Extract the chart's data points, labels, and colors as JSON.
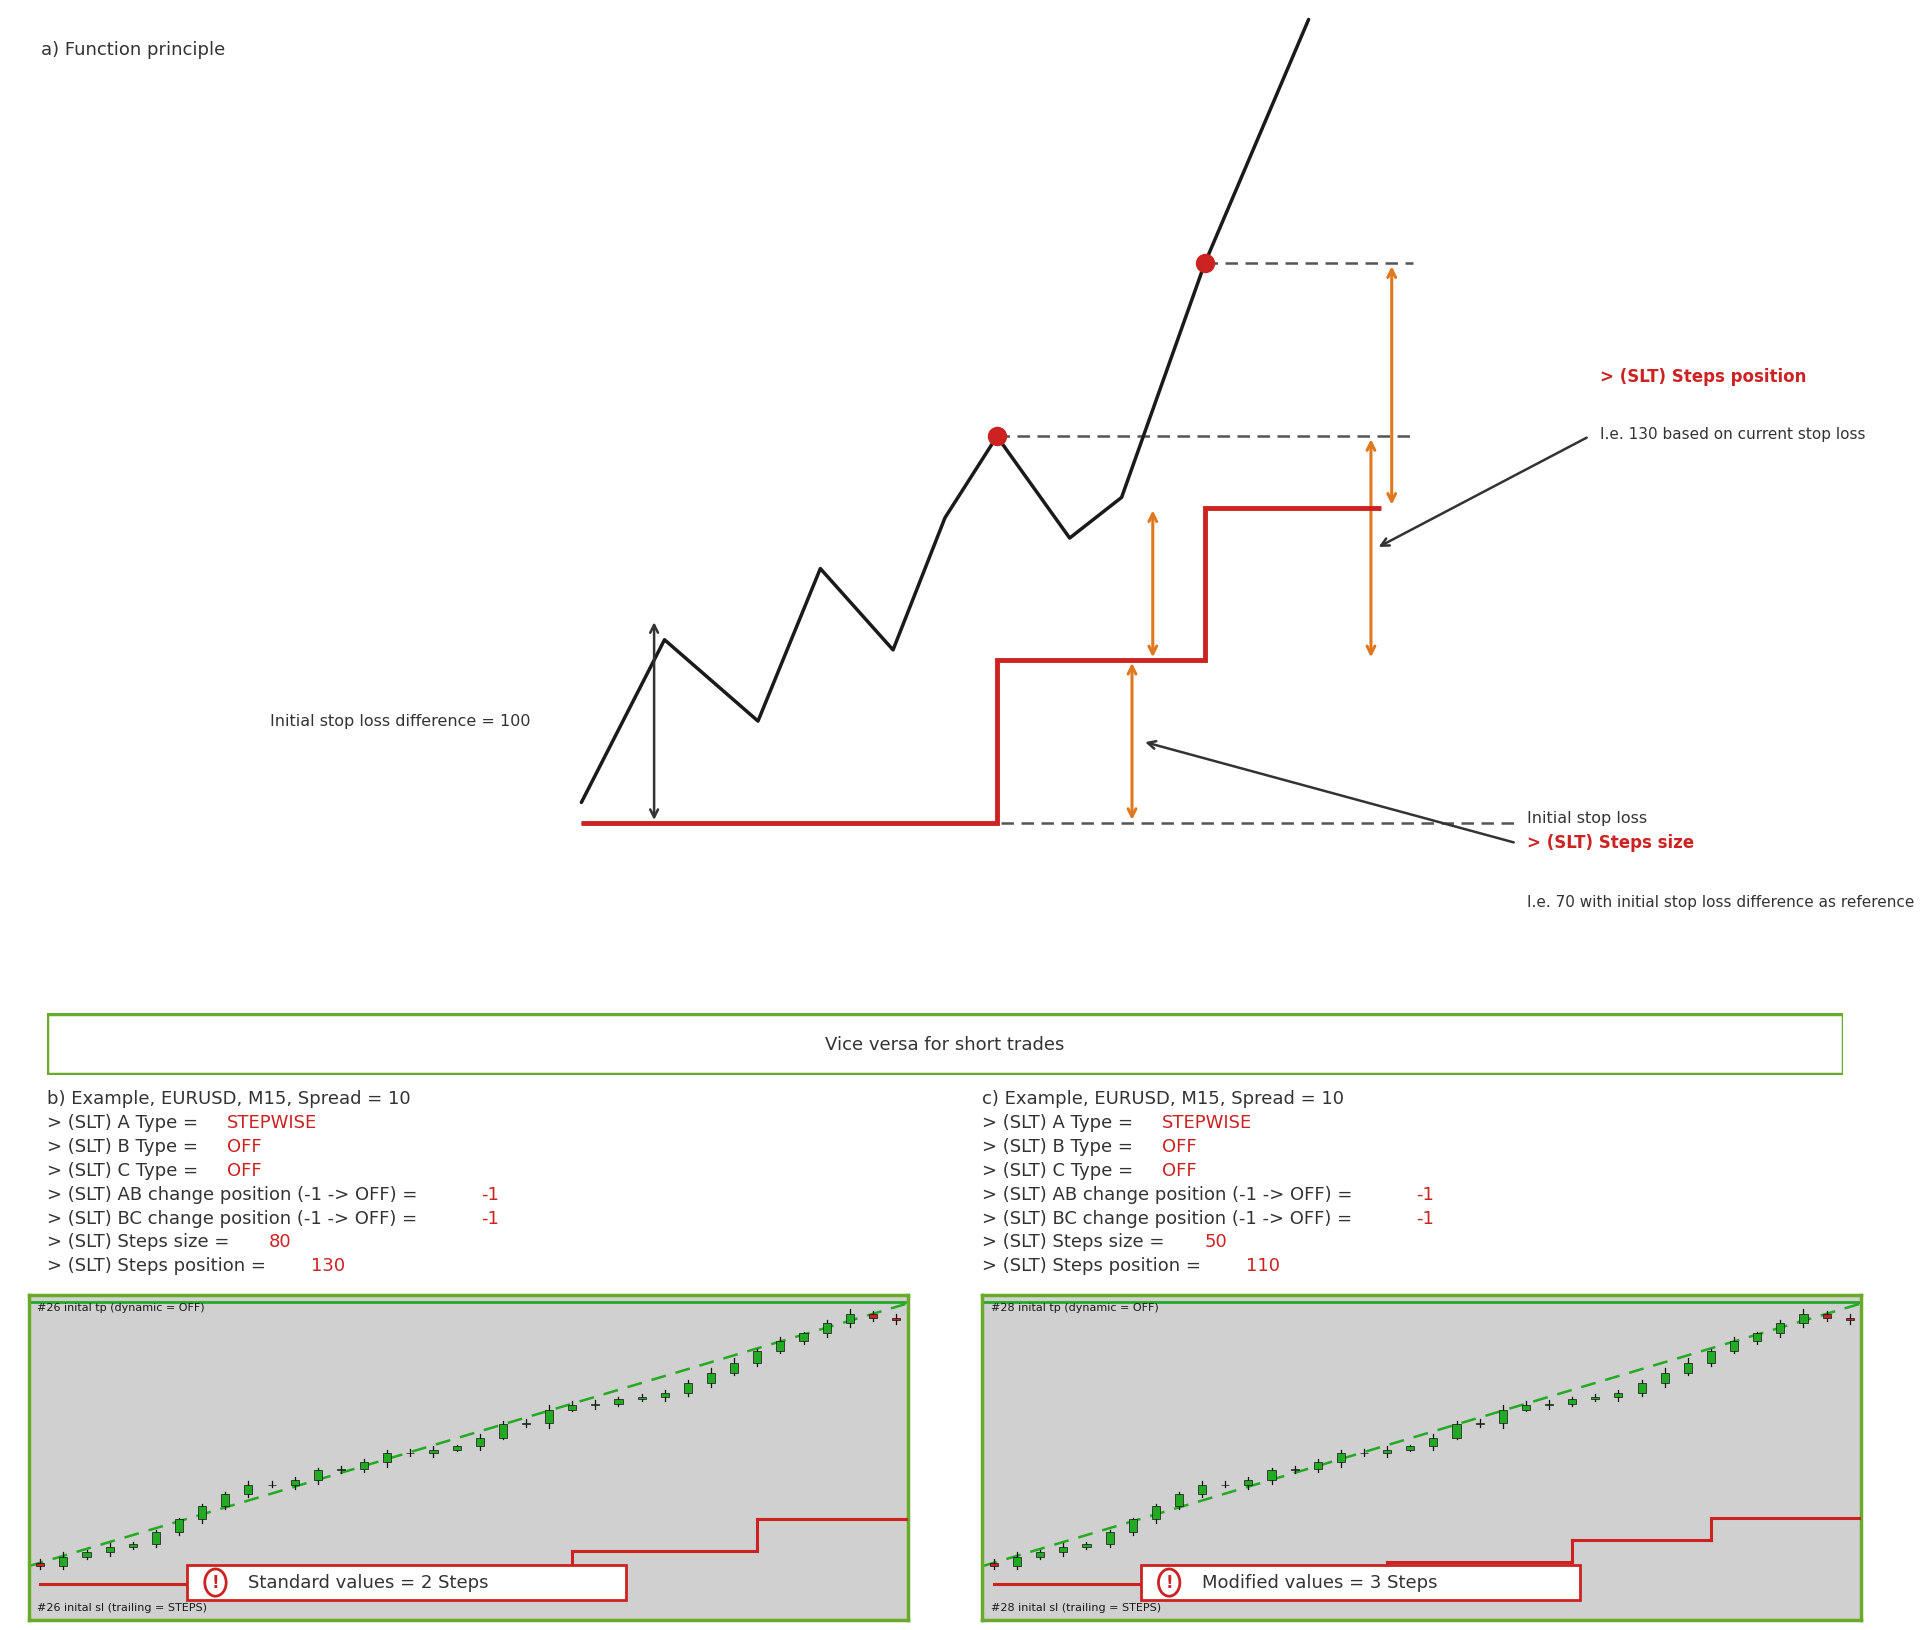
{
  "bg_color": "#ffffff",
  "title_a": "a) Function principle",
  "vice_versa_text": "Vice versa for short trades",
  "vice_versa_border": "#6aaa2a",
  "price_line_color": "#1a1a1a",
  "sl_line_color": "#cc2222",
  "initial_sl_label": "Initial stop loss",
  "initial_diff_label": "Initial stop loss difference = 100",
  "steps_pos_label": "> (SLT) Steps position",
  "steps_pos_sub": "I.e. 130 based on current stop loss",
  "steps_size_label": "> (SLT) Steps size",
  "steps_size_sub": "I.e. 70 with initial stop loss difference as reference",
  "steps_pos_color": "#cc2222",
  "steps_size_color": "#cc2222",
  "orange_arrow_color": "#e07820",
  "dashed_line_color": "#555555",
  "dot_color": "#cc2222",
  "panel_bg": "#d0d0d0",
  "panel_border": "#6aaa2a",
  "green_candle": "#22aa22",
  "red_candle": "#cc2222",
  "tp_line_color": "#22aa22",
  "sl_step_color": "#cc2222",
  "b_title": "b) Example, EURUSD, M15, Spread = 10",
  "c_title": "c) Example, EURUSD, M15, Spread = 10",
  "b_params": [
    [
      "> (SLT) A Type = ",
      "STEPWISE",
      ""
    ],
    [
      "> (SLT) B Type = ",
      "OFF",
      ""
    ],
    [
      "> (SLT) C Type = ",
      "OFF",
      ""
    ],
    [
      "> (SLT) AB change position (-1 -> OFF) = ",
      "-1",
      ""
    ],
    [
      "> (SLT) BC change position (-1 -> OFF) = ",
      "-1",
      ""
    ],
    [
      "> (SLT) Steps size = ",
      "80",
      ""
    ],
    [
      "> (SLT) Steps position = ",
      "130",
      ""
    ]
  ],
  "c_params": [
    [
      "> (SLT) A Type = ",
      "STEPWISE",
      ""
    ],
    [
      "> (SLT) B Type = ",
      "OFF",
      ""
    ],
    [
      "> (SLT) C Type = ",
      "OFF",
      ""
    ],
    [
      "> (SLT) AB change position (-1 -> OFF) = ",
      "-1",
      ""
    ],
    [
      "> (SLT) BC change position (-1 -> OFF) = ",
      "-1",
      ""
    ],
    [
      "> (SLT) Steps size = ",
      "50",
      ""
    ],
    [
      "> (SLT) Steps position = ",
      "110",
      ""
    ]
  ],
  "b_label_top": "#26 inital tp (dynamic = OFF)",
  "b_label_bot": "#26 inital sl (trailing = STEPS)",
  "c_label_top": "#28 inital tp (dynamic = OFF)",
  "c_label_bot": "#28 inital sl (trailing = STEPS)",
  "b_note": "Standard values = 2 Steps",
  "c_note": "Modified values = 3 Steps",
  "note_color": "#cc2222",
  "red_color": "#cc2222",
  "dark_color": "#333333",
  "font_size_main": 13,
  "font_size_param": 13
}
